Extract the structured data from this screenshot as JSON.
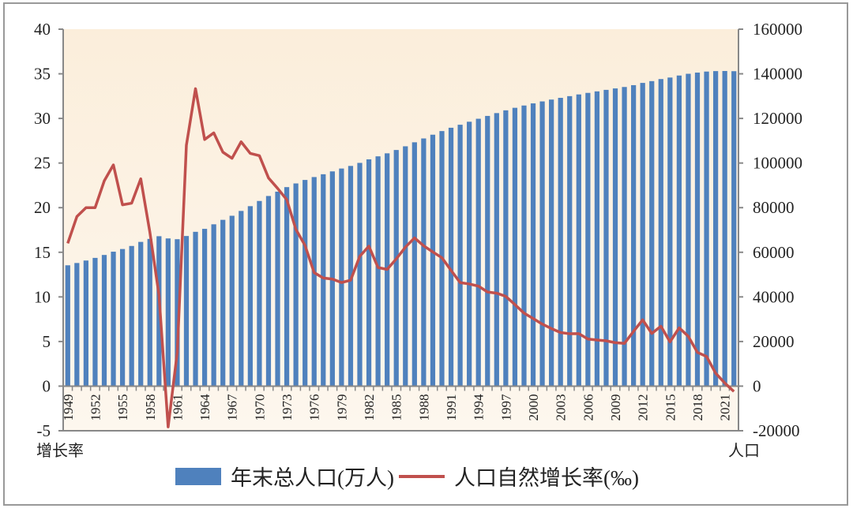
{
  "chart_data": {
    "type": "bar+line",
    "categories": [
      1949,
      1950,
      1951,
      1952,
      1953,
      1954,
      1955,
      1956,
      1957,
      1958,
      1959,
      1960,
      1961,
      1962,
      1963,
      1964,
      1965,
      1966,
      1967,
      1968,
      1969,
      1970,
      1971,
      1972,
      1973,
      1974,
      1975,
      1976,
      1977,
      1978,
      1979,
      1980,
      1981,
      1982,
      1983,
      1984,
      1985,
      1986,
      1987,
      1988,
      1989,
      1990,
      1991,
      1992,
      1993,
      1994,
      1995,
      1996,
      1997,
      1998,
      1999,
      2000,
      2001,
      2002,
      2003,
      2004,
      2005,
      2006,
      2007,
      2008,
      2009,
      2010,
      2011,
      2012,
      2013,
      2014,
      2015,
      2016,
      2017,
      2018,
      2019,
      2020,
      2021,
      2022
    ],
    "x_tick_labels": [
      "1949",
      "1952",
      "1955",
      "1958",
      "1961",
      "1964",
      "1967",
      "1970",
      "1973",
      "1976",
      "1979",
      "1982",
      "1985",
      "1988",
      "1991",
      "1994",
      "1997",
      "2000",
      "2003",
      "2006",
      "2009",
      "2012",
      "2015",
      "2018",
      "2021"
    ],
    "series": [
      {
        "name": "年末总人口(万人)",
        "type": "bar",
        "axis": "right",
        "color": "#4f81bd",
        "values": [
          54167,
          55196,
          56300,
          57482,
          58796,
          60266,
          61465,
          62828,
          64653,
          65994,
          67207,
          66207,
          65859,
          67295,
          69172,
          70499,
          72538,
          74542,
          76368,
          78534,
          80671,
          82992,
          85229,
          87177,
          89211,
          90859,
          92420,
          93717,
          94974,
          96259,
          97542,
          98705,
          100072,
          101654,
          103008,
          104357,
          105851,
          107507,
          109300,
          111026,
          112704,
          114333,
          115823,
          117171,
          118517,
          119850,
          121121,
          122389,
          123626,
          124761,
          125786,
          126743,
          127627,
          128453,
          129227,
          129988,
          130756,
          131448,
          132129,
          132802,
          133450,
          134091,
          134916,
          135922,
          136726,
          137646,
          138326,
          139232,
          140011,
          140541,
          141008,
          141212,
          141260,
          141175
        ]
      },
      {
        "name": "人口自然增长率(‰)",
        "type": "line",
        "axis": "left",
        "color": "#c0504d",
        "values": [
          16,
          19,
          20,
          20,
          23,
          24.79,
          20.32,
          20.5,
          23.23,
          17.24,
          10.19,
          -4.57,
          3.78,
          26.99,
          33.33,
          27.64,
          28.38,
          26.22,
          25.53,
          27.38,
          26.08,
          25.83,
          23.33,
          22.16,
          20.89,
          17.57,
          15.77,
          12.72,
          12.12,
          12,
          11.61,
          11.87,
          14.55,
          15.68,
          13.29,
          13.08,
          14.26,
          15.57,
          16.61,
          15.73,
          15.04,
          14.39,
          12.98,
          11.6,
          11.45,
          11.21,
          10.55,
          10.42,
          10.06,
          9.14,
          8.18,
          7.58,
          6.95,
          6.45,
          6.01,
          5.87,
          5.89,
          5.28,
          5.17,
          5.08,
          4.87,
          4.79,
          6.13,
          7.43,
          5.9,
          6.71,
          4.96,
          6.53,
          5.58,
          3.78,
          3.32,
          1.45,
          0.34,
          -0.6
        ]
      }
    ],
    "ylabel_left": "增长率",
    "ylabel_right": "人口",
    "ylim_left": [
      -5,
      40
    ],
    "yticks_left": [
      "40",
      "35",
      "30",
      "25",
      "20",
      "15",
      "10",
      "5",
      "0",
      "-5"
    ],
    "ylim_right": [
      -20000,
      160000
    ],
    "yticks_right": [
      "160000",
      "140000",
      "120000",
      "100000",
      "80000",
      "60000",
      "40000",
      "20000",
      "0",
      "-20000"
    ],
    "grid": false,
    "legend_position": "bottom",
    "plot_background": "#fbf1e2"
  }
}
